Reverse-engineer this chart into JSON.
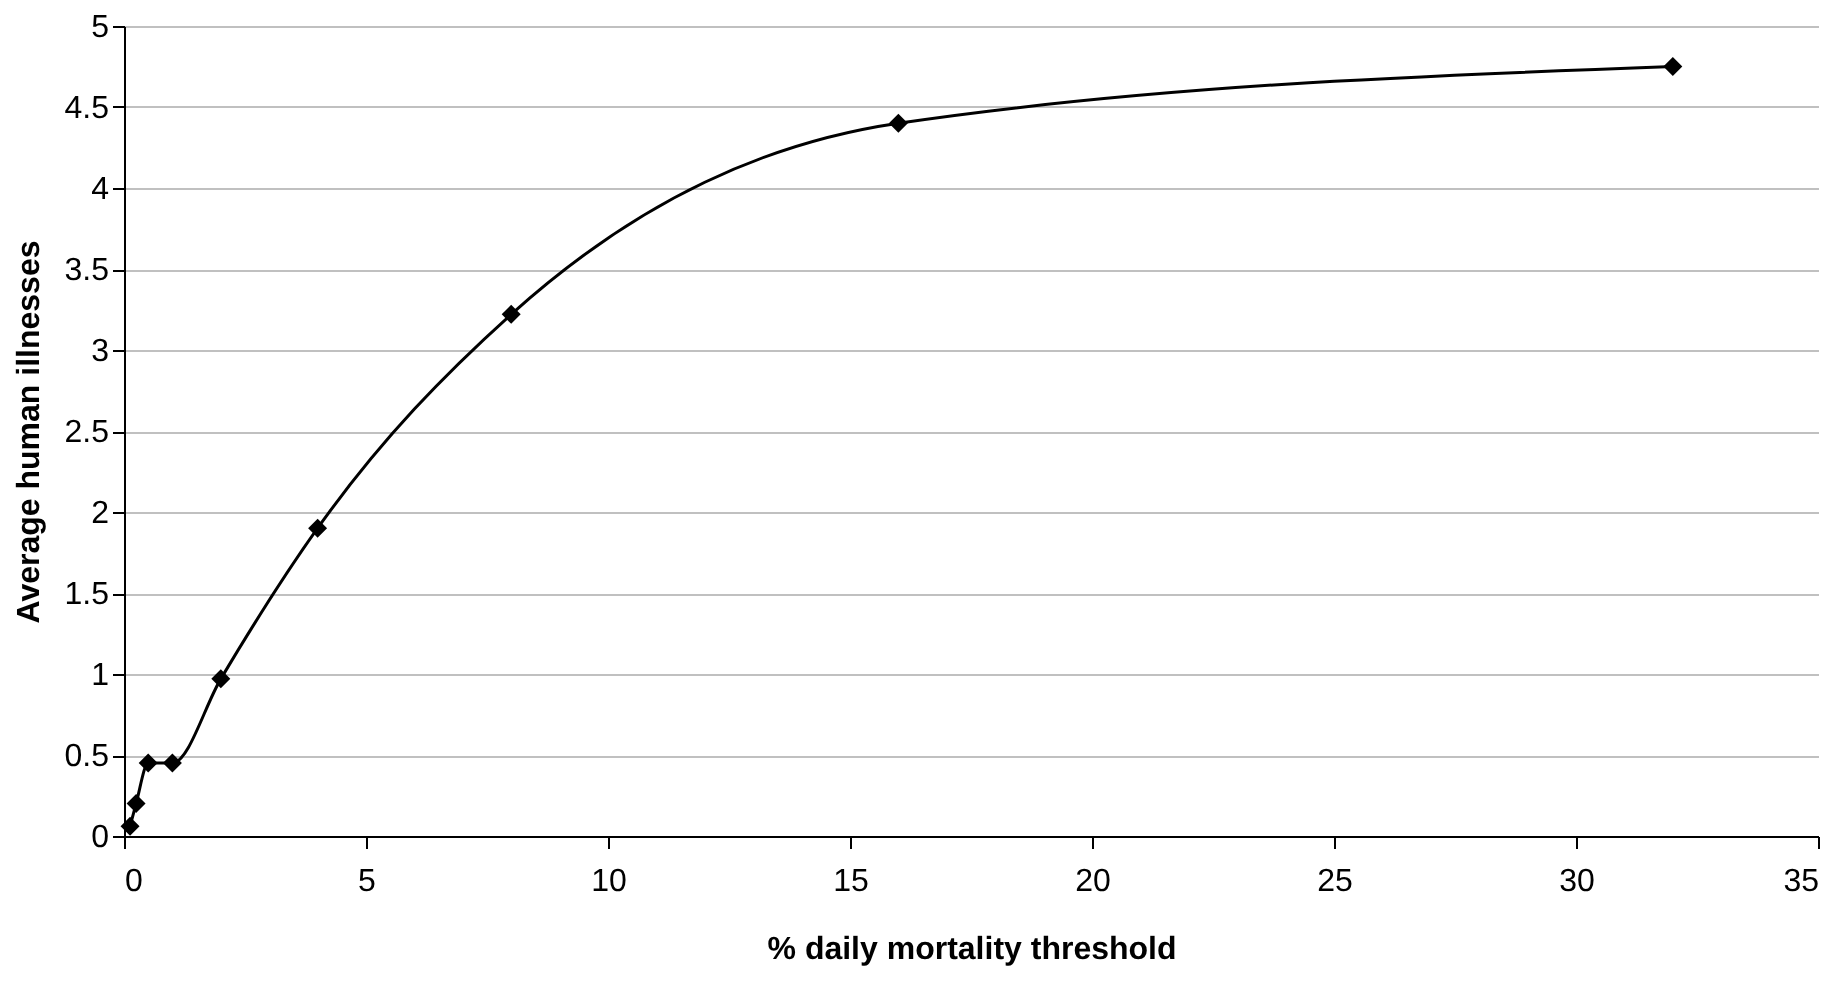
{
  "chart_data": {
    "type": "line",
    "xlabel": "% daily mortality threshold",
    "ylabel": "Average human illnesses",
    "x": [
      0.125,
      0.25,
      0.5,
      1,
      2,
      4,
      8,
      16,
      32
    ],
    "series": [
      {
        "color": "#000000",
        "values": [
          0.06,
          0.2,
          0.45,
          0.45,
          0.97,
          1.9,
          3.22,
          4.4,
          4.75
        ]
      }
    ],
    "xlim": [
      0,
      35
    ],
    "xticks": [
      0,
      5,
      10,
      15,
      20,
      25,
      30,
      35
    ],
    "ylim": [
      0,
      5
    ],
    "yticks": [
      0,
      0.5,
      1,
      1.5,
      2,
      2.5,
      3,
      3.5,
      4,
      4.5,
      5
    ],
    "grid": "y",
    "marker": "diamond",
    "line_style": "solid"
  }
}
